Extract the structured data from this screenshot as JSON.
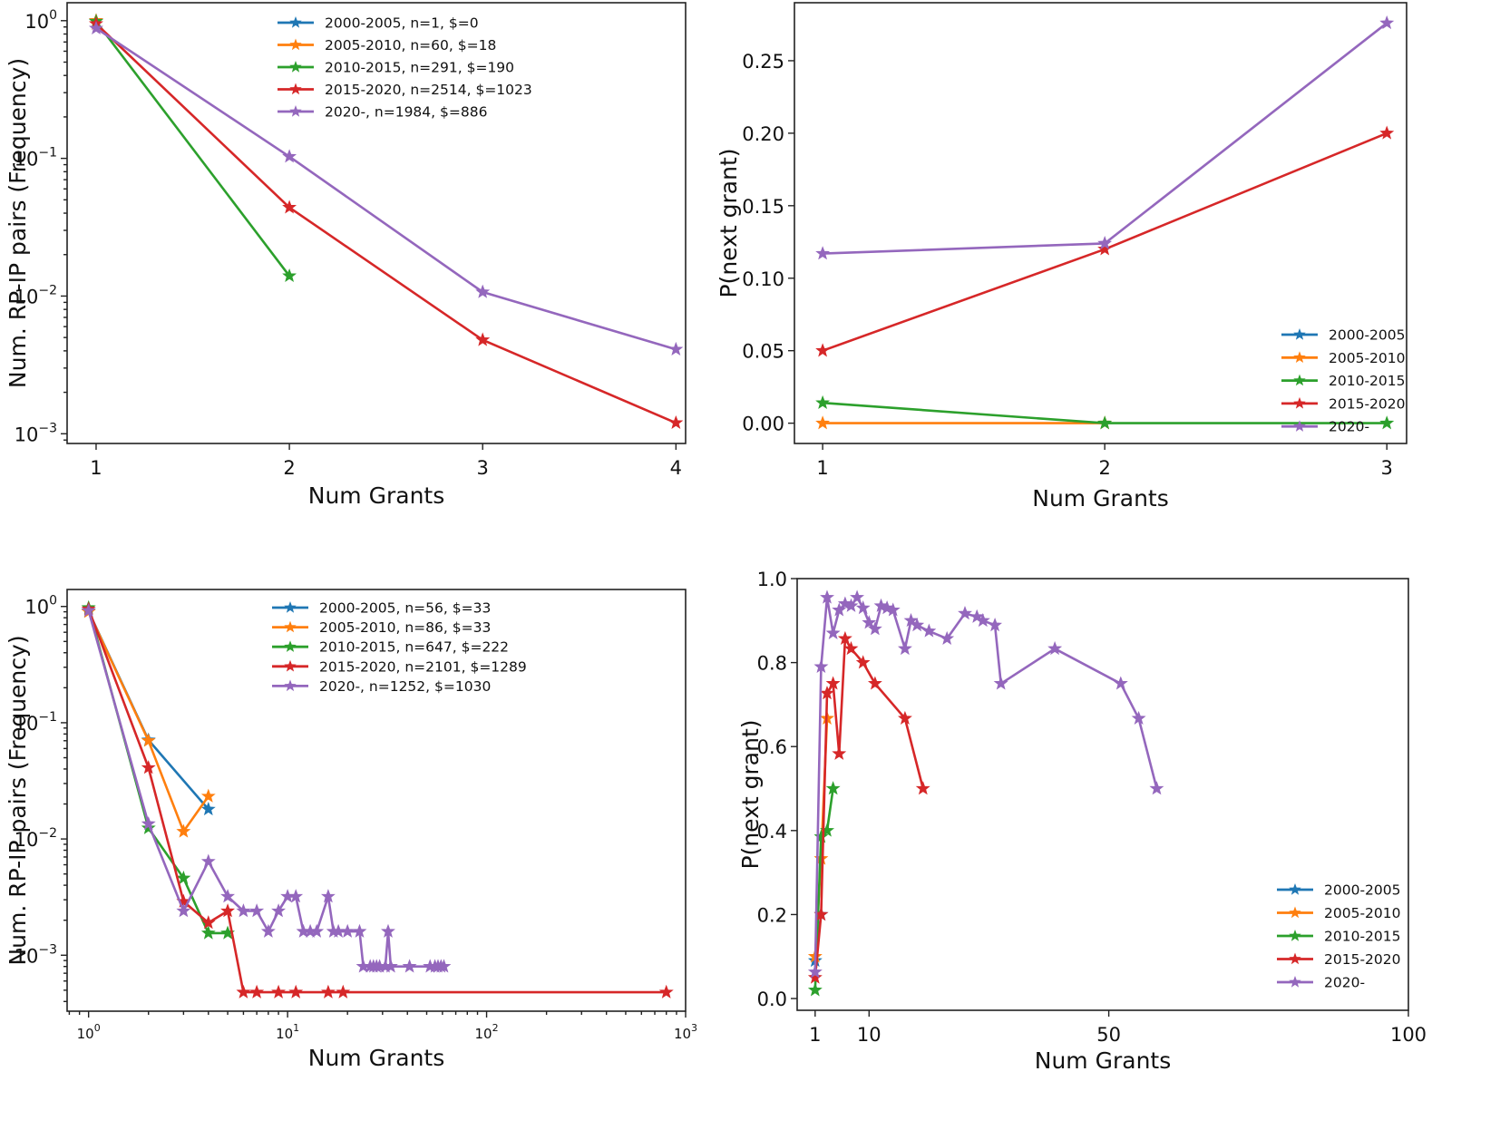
{
  "colors": {
    "2000-2005": "#1f77b4",
    "2005-2010": "#ff7f0e",
    "2010-2015": "#2ca02c",
    "2015-2020": "#d62728",
    "2020-": "#9467bd"
  },
  "chart_data": [
    {
      "id": "top-left",
      "type": "line",
      "title": "",
      "xlabel": "Num Grants",
      "ylabel": "Num. RP-IP pairs (Frequency)",
      "xscale": "linear",
      "yscale": "log",
      "xlim": [
        0.85,
        4.05
      ],
      "ylim": [
        0.00085,
        1.35
      ],
      "xticks": [
        1,
        2,
        3,
        4
      ],
      "xtick_labels": [
        "1",
        "2",
        "3",
        "4"
      ],
      "yticks": [
        0.001,
        0.01,
        0.1,
        1
      ],
      "ytick_labels": [
        [
          "10",
          "−3"
        ],
        [
          "10",
          "−2"
        ],
        [
          "10",
          "−1"
        ],
        [
          "10",
          "0"
        ]
      ],
      "legend_position": "top-right",
      "series": [
        {
          "name": "2000-2005",
          "label": "2000-2005, n=1, $=0",
          "x": [
            1
          ],
          "y": [
            1.0
          ]
        },
        {
          "name": "2005-2010",
          "label": "2005-2010, n=60, $=18",
          "x": [
            1
          ],
          "y": [
            1.0
          ]
        },
        {
          "name": "2010-2015",
          "label": "2010-2015, n=291, $=190",
          "x": [
            1,
            2
          ],
          "y": [
            0.986,
            0.014
          ]
        },
        {
          "name": "2015-2020",
          "label": "2015-2020, n=2514, $=1023",
          "x": [
            1,
            2,
            3,
            4
          ],
          "y": [
            0.95,
            0.044,
            0.0048,
            0.0012
          ]
        },
        {
          "name": "2020-",
          "label": "2020-, n=1984, $=886",
          "x": [
            1,
            2,
            3,
            4
          ],
          "y": [
            0.88,
            0.103,
            0.0107,
            0.0041
          ]
        }
      ]
    },
    {
      "id": "top-right",
      "type": "line",
      "title": "",
      "xlabel": "Num Grants",
      "ylabel": "P(next grant)",
      "xscale": "linear",
      "yscale": "linear",
      "xlim": [
        0.9,
        3.07
      ],
      "ylim": [
        -0.014,
        0.29
      ],
      "xticks": [
        1,
        2,
        3
      ],
      "xtick_labels": [
        "1",
        "2",
        "3"
      ],
      "yticks": [
        0,
        0.05,
        0.1,
        0.15,
        0.2,
        0.25
      ],
      "ytick_labels": [
        "0.00",
        "0.05",
        "0.10",
        "0.15",
        "0.20",
        "0.25"
      ],
      "legend_position": "bottom-right",
      "series": [
        {
          "name": "2000-2005",
          "label": "2000-2005",
          "x": [],
          "y": []
        },
        {
          "name": "2005-2010",
          "label": "2005-2010",
          "x": [
            1,
            2
          ],
          "y": [
            0.0,
            0.0
          ]
        },
        {
          "name": "2010-2015",
          "label": "2010-2015",
          "x": [
            1,
            2,
            3
          ],
          "y": [
            0.014,
            0.0,
            0.0
          ]
        },
        {
          "name": "2015-2020",
          "label": "2015-2020",
          "x": [
            1,
            2,
            3
          ],
          "y": [
            0.05,
            0.12,
            0.2
          ]
        },
        {
          "name": "2020-",
          "label": "2020-",
          "x": [
            1,
            2,
            3
          ],
          "y": [
            0.117,
            0.124,
            0.276
          ]
        }
      ]
    },
    {
      "id": "bottom-left",
      "type": "line",
      "title": "",
      "xlabel": "Num Grants",
      "ylabel": "Num. RP-IP pairs (Frequency)",
      "xscale": "log",
      "yscale": "log",
      "xlim": [
        0.78,
        1000
      ],
      "ylim": [
        0.00033,
        1.4
      ],
      "xticks": [
        1,
        10,
        100,
        1000
      ],
      "xtick_labels": [
        [
          "10",
          "0"
        ],
        [
          "10",
          "1"
        ],
        [
          "10",
          "2"
        ],
        [
          "10",
          "3"
        ]
      ],
      "yticks": [
        0.001,
        0.01,
        0.1,
        1
      ],
      "ytick_labels": [
        [
          "10",
          "−3"
        ],
        [
          "10",
          "−2"
        ],
        [
          "10",
          "−1"
        ],
        [
          "10",
          "0"
        ]
      ],
      "legend_position": "top-right",
      "series": [
        {
          "name": "2000-2005",
          "label": "2000-2005, n=56, $=33",
          "x": [
            1,
            2,
            4
          ],
          "y": [
            0.91,
            0.071,
            0.018
          ]
        },
        {
          "name": "2005-2010",
          "label": "2005-2010, n=86, $=33",
          "x": [
            1,
            2,
            3,
            4
          ],
          "y": [
            0.9,
            0.07,
            0.0116,
            0.0233
          ]
        },
        {
          "name": "2010-2015",
          "label": "2010-2015, n=647, $=222",
          "x": [
            1,
            2,
            3,
            4,
            5
          ],
          "y": [
            0.975,
            0.0124,
            0.0046,
            0.00155,
            0.00155
          ]
        },
        {
          "name": "2015-2020",
          "label": "2015-2020, n=2101, $=1289",
          "x": [
            1,
            2,
            3,
            4,
            5,
            6,
            7,
            9,
            11,
            16,
            19,
            800
          ],
          "y": [
            0.95,
            0.041,
            0.0029,
            0.0019,
            0.0024,
            0.00048,
            0.00048,
            0.00048,
            0.00048,
            0.00048,
            0.00048,
            0.00048
          ]
        },
        {
          "name": "2020-",
          "label": "2020-, n=1252, $=1030",
          "x": [
            1,
            2,
            3,
            4,
            5,
            6,
            7,
            8,
            9,
            10,
            11,
            12,
            13,
            14,
            16,
            17,
            18,
            20,
            23,
            24,
            26,
            27,
            28,
            29,
            31,
            32,
            33,
            41,
            52,
            55,
            57,
            59,
            61
          ],
          "y": [
            0.92,
            0.0135,
            0.0024,
            0.0064,
            0.0032,
            0.0024,
            0.0024,
            0.0016,
            0.0024,
            0.0032,
            0.0032,
            0.0016,
            0.0016,
            0.0016,
            0.0032,
            0.0016,
            0.0016,
            0.0016,
            0.0016,
            0.0008,
            0.0008,
            0.0008,
            0.0008,
            0.0008,
            0.0008,
            0.0016,
            0.0008,
            0.0008,
            0.0008,
            0.0008,
            0.0008,
            0.0008,
            0.0008
          ]
        }
      ]
    },
    {
      "id": "bottom-right",
      "type": "line",
      "title": "",
      "xlabel": "Num Grants",
      "ylabel": "P(next grant)",
      "xscale": "linear",
      "yscale": "linear",
      "xlim": [
        -2,
        100
      ],
      "ylim": [
        -0.028,
        1.0
      ],
      "xticks": [
        1,
        10,
        50,
        100
      ],
      "xtick_labels": [
        "1",
        "10",
        "50",
        "100"
      ],
      "yticks": [
        0,
        0.2,
        0.4,
        0.6,
        0.8,
        1.0
      ],
      "ytick_labels": [
        "0.0",
        "0.2",
        "0.4",
        "0.6",
        "0.8",
        "1.0"
      ],
      "legend_position": "bottom-right",
      "series": [
        {
          "name": "2000-2005",
          "label": "2000-2005",
          "x": [
            1,
            2
          ],
          "y": [
            0.09,
            0.2
          ]
        },
        {
          "name": "2005-2010",
          "label": "2005-2010",
          "x": [
            1,
            2,
            3
          ],
          "y": [
            0.1,
            0.333,
            0.667
          ]
        },
        {
          "name": "2010-2015",
          "label": "2010-2015",
          "x": [
            1,
            2,
            3,
            4
          ],
          "y": [
            0.02,
            0.385,
            0.4,
            0.5
          ]
        },
        {
          "name": "2015-2020",
          "label": "2015-2020",
          "x": [
            1,
            2,
            3,
            4,
            5,
            6,
            7,
            9,
            11,
            16,
            19
          ],
          "y": [
            0.05,
            0.2,
            0.727,
            0.75,
            0.583,
            0.857,
            0.833,
            0.8,
            0.75,
            0.667,
            0.5
          ]
        },
        {
          "name": "2020-",
          "label": "2020-",
          "x": [
            1,
            2,
            3,
            4,
            5,
            6,
            7,
            8,
            9,
            10,
            11,
            12,
            13,
            14,
            16,
            17,
            18,
            20,
            23,
            26,
            28,
            29,
            31,
            32,
            41,
            52,
            55,
            58
          ],
          "y": [
            0.063,
            0.79,
            0.955,
            0.87,
            0.925,
            0.94,
            0.935,
            0.955,
            0.93,
            0.895,
            0.88,
            0.935,
            0.93,
            0.925,
            0.833,
            0.9,
            0.889,
            0.875,
            0.857,
            0.917,
            0.909,
            0.9,
            0.889,
            0.75,
            0.833,
            0.75,
            0.667,
            0.5
          ]
        }
      ]
    }
  ]
}
